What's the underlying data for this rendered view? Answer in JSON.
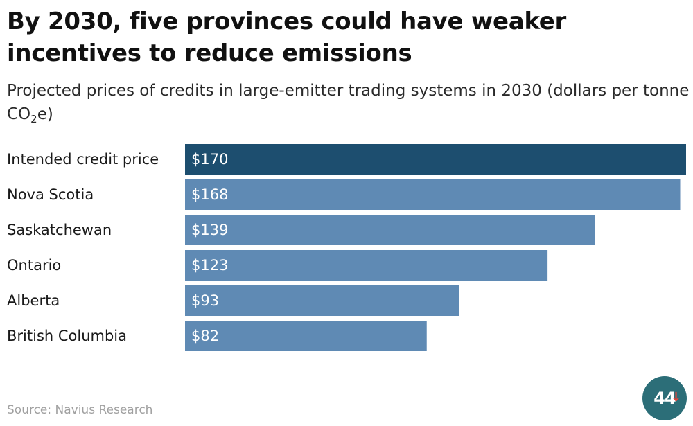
{
  "header": {
    "title": "By 2030, five provinces could have weaker incentives to reduce emissions",
    "subtitle_main": "Projected prices of credits in large-emitter trading systems in 2030 (dollars per tonne CO",
    "subtitle_sub": "2",
    "subtitle_end": "e)"
  },
  "footer": {
    "source": "Source: Navius Research",
    "logo_text": "44",
    "logo_arrow": "↓"
  },
  "colors": {
    "highlight_bar": "#1d4e6f",
    "bar": "#5f8ab4",
    "value_text": "#ffffff",
    "logo_bg": "#2c6e78",
    "logo_arrow": "#e8443a"
  },
  "chart_data": {
    "type": "bar",
    "orientation": "horizontal",
    "categories": [
      "Intended credit price",
      "Nova Scotia",
      "Saskatchewan",
      "Ontario",
      "Alberta",
      "British Columbia"
    ],
    "values": [
      170,
      168,
      139,
      123,
      93,
      82
    ],
    "value_labels": [
      "$170",
      "$168",
      "$139",
      "$123",
      "$93",
      "$82"
    ],
    "highlight_index": 0,
    "xlim": [
      0,
      170
    ],
    "grid": false,
    "legend": "none"
  }
}
